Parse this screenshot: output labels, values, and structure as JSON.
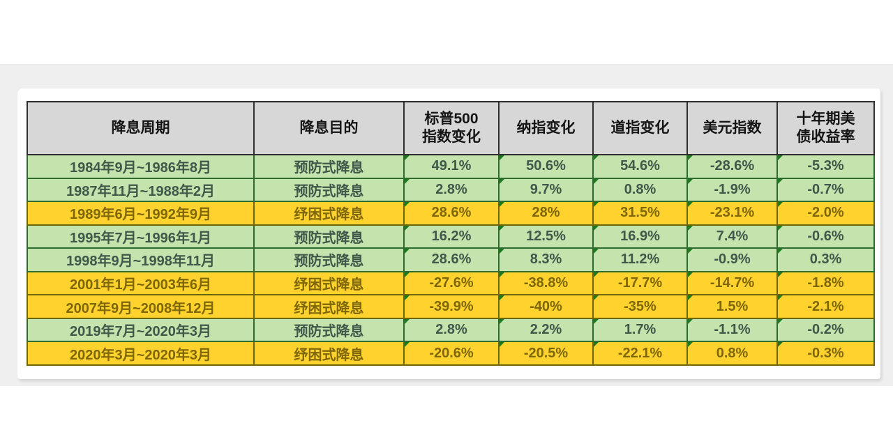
{
  "chart_data": {
    "type": "table",
    "title": "",
    "columns": [
      "降息周期",
      "降息目的",
      "标普500\n指数变化",
      "纳指变化",
      "道指变化",
      "美元指数",
      "十年期美\n债收益率"
    ],
    "rows": [
      {
        "cells": [
          "1984年9月~1986年8月",
          "预防式降息",
          "49.1%",
          "50.6%",
          "54.6%",
          "-28.6%",
          "-5.3%"
        ],
        "category": "preventive"
      },
      {
        "cells": [
          "1987年11月~1988年2月",
          "预防式降息",
          "2.8%",
          "9.7%",
          "0.8%",
          "-1.9%",
          "-0.7%"
        ],
        "category": "preventive"
      },
      {
        "cells": [
          "1989年6月~1992年9月",
          "纾困式降息",
          "28.6%",
          "28%",
          "31.5%",
          "-23.1%",
          "-2.0%"
        ],
        "category": "relief"
      },
      {
        "cells": [
          "1995年7月~1996年1月",
          "预防式降息",
          "16.2%",
          "12.5%",
          "16.9%",
          "7.4%",
          "-0.6%"
        ],
        "category": "preventive"
      },
      {
        "cells": [
          "1998年9月~1998年11月",
          "预防式降息",
          "28.6%",
          "8.3%",
          "11.2%",
          "-0.9%",
          "0.3%"
        ],
        "category": "preventive"
      },
      {
        "cells": [
          "2001年1月~2003年6月",
          "纾困式降息",
          "-27.6%",
          "-38.8%",
          "-17.7%",
          "-14.7%",
          "-1.8%"
        ],
        "category": "relief"
      },
      {
        "cells": [
          "2007年9月~2008年12月",
          "纾困式降息",
          "-39.9%",
          "-40%",
          "-35%",
          "1.5%",
          "-2.1%"
        ],
        "category": "relief"
      },
      {
        "cells": [
          "2019年7月~2020年3月",
          "预防式降息",
          "2.8%",
          "2.2%",
          "1.7%",
          "-1.1%",
          "-0.2%"
        ],
        "category": "preventive"
      },
      {
        "cells": [
          "2020年3月~2020年3月",
          "纾困式降息",
          "-20.6%",
          "-20.5%",
          "-22.1%",
          "0.8%",
          "-0.3%"
        ],
        "category": "relief"
      }
    ],
    "category_labels": {
      "preventive": "预防式降息",
      "relief": "纾困式降息"
    },
    "colors": {
      "backdrop": "#efefef",
      "card": "#ffffff",
      "header_bg": "#d7d7d7",
      "header_text": "#141414",
      "preventive_bg": "#c4e3ad",
      "preventive_text": "#3e584a",
      "relief_bg": "#ffd22e",
      "relief_text": "#7d6708"
    }
  }
}
